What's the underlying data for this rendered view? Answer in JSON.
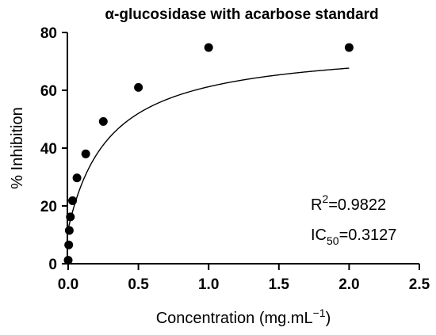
{
  "chart_data": {
    "type": "scatter",
    "title": "α-glucosidase with acarbose standard",
    "xlabel": {
      "text": "Concentration (mg.mL",
      "sup": "−1",
      "close": ")"
    },
    "ylabel": "% Inhibition",
    "xlim": [
      0,
      2.5
    ],
    "ylim": [
      0,
      80
    ],
    "xticks": [
      "0.0",
      "0.5",
      "1.0",
      "1.5",
      "2.0",
      "2.5"
    ],
    "yticks": [
      "0",
      "20",
      "40",
      "60",
      "80"
    ],
    "grid": false,
    "series": [
      {
        "x": [
          0,
          0.0039,
          0.0078,
          0.0156,
          0.03125,
          0.0625,
          0.125,
          0.25,
          0.5,
          1.0,
          2.0
        ],
        "y": [
          1.2,
          6.5,
          11.5,
          16.2,
          21.8,
          29.7,
          38.0,
          49.2,
          61.0,
          74.8,
          74.8
        ],
        "marker": "circle",
        "color": "#000000"
      }
    ],
    "fit": {
      "type": "hyperbolic",
      "xmin": 0,
      "xmax": 2.0,
      "color": "#000000"
    },
    "annotations": {
      "r2": {
        "base": "R",
        "sup": "2",
        "value": "=0.9822"
      },
      "ic50": {
        "base": "IC",
        "sub": "50",
        "value": "=0.3127"
      }
    }
  }
}
